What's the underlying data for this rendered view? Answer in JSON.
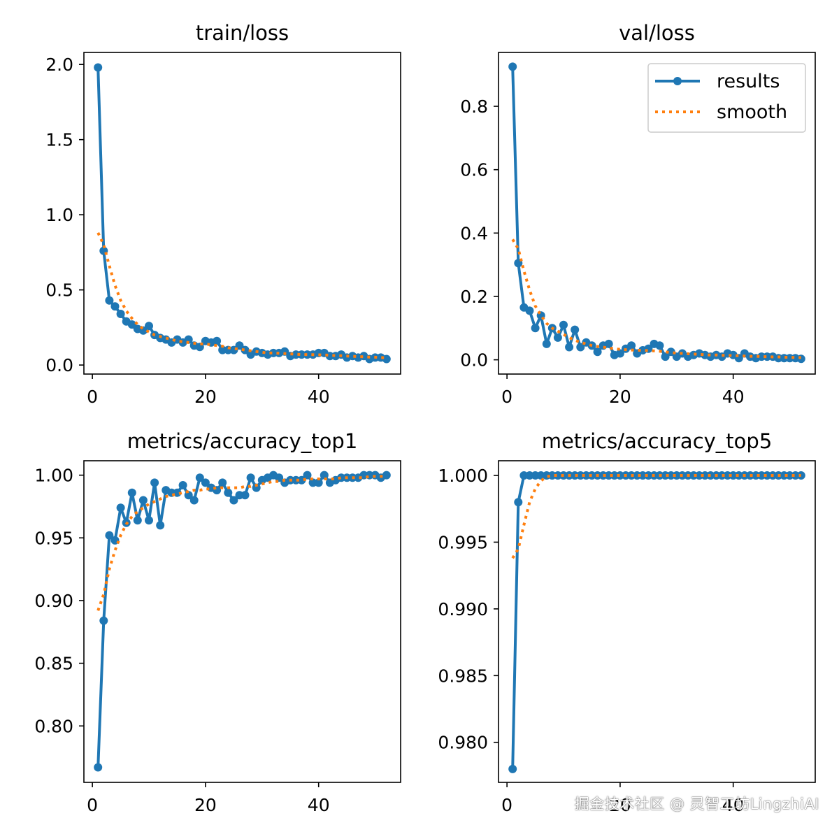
{
  "chart_data": [
    {
      "type": "line",
      "title": "train/loss",
      "xlabel": "",
      "ylabel": "",
      "xlim": [
        -1.5,
        54.5
      ],
      "ylim": [
        -0.06,
        2.08
      ],
      "xticks": [
        0,
        20,
        40
      ],
      "xtick_labels": [
        "0",
        "20",
        "40"
      ],
      "yticks": [
        0.0,
        0.5,
        1.0,
        1.5,
        2.0
      ],
      "ytick_labels": [
        "0.0",
        "0.5",
        "1.0",
        "1.5",
        "2.0"
      ],
      "series": [
        {
          "name": "results",
          "x": [
            1,
            2,
            3,
            4,
            5,
            6,
            7,
            8,
            9,
            10,
            11,
            12,
            13,
            14,
            15,
            16,
            17,
            18,
            19,
            20,
            21,
            22,
            23,
            24,
            25,
            26,
            27,
            28,
            29,
            30,
            31,
            32,
            33,
            34,
            35,
            36,
            37,
            38,
            39,
            40,
            41,
            42,
            43,
            44,
            45,
            46,
            47,
            48,
            49,
            50,
            51,
            52
          ],
          "values": [
            1.98,
            0.76,
            0.43,
            0.39,
            0.34,
            0.29,
            0.27,
            0.24,
            0.23,
            0.26,
            0.2,
            0.18,
            0.17,
            0.15,
            0.17,
            0.15,
            0.17,
            0.13,
            0.12,
            0.16,
            0.15,
            0.16,
            0.1,
            0.1,
            0.1,
            0.13,
            0.1,
            0.07,
            0.09,
            0.08,
            0.07,
            0.08,
            0.08,
            0.09,
            0.06,
            0.07,
            0.07,
            0.07,
            0.07,
            0.08,
            0.08,
            0.06,
            0.06,
            0.07,
            0.05,
            0.06,
            0.05,
            0.06,
            0.04,
            0.05,
            0.05,
            0.04
          ]
        },
        {
          "name": "smooth",
          "x": [
            1,
            2,
            3,
            4,
            5,
            6,
            7,
            8,
            9,
            10,
            11,
            12,
            13,
            14,
            15,
            16,
            17,
            18,
            19,
            20,
            21,
            22,
            23,
            24,
            25,
            26,
            27,
            28,
            29,
            30,
            31,
            32,
            33,
            34,
            35,
            36,
            37,
            38,
            39,
            40,
            41,
            42,
            43,
            44,
            45,
            46,
            47,
            48,
            49,
            50,
            51,
            52
          ],
          "values": [
            0.88,
            0.8,
            0.66,
            0.53,
            0.43,
            0.36,
            0.31,
            0.27,
            0.24,
            0.22,
            0.2,
            0.19,
            0.18,
            0.17,
            0.16,
            0.155,
            0.15,
            0.145,
            0.14,
            0.14,
            0.135,
            0.13,
            0.125,
            0.115,
            0.11,
            0.105,
            0.1,
            0.095,
            0.09,
            0.085,
            0.08,
            0.08,
            0.078,
            0.076,
            0.074,
            0.072,
            0.07,
            0.07,
            0.069,
            0.068,
            0.067,
            0.065,
            0.063,
            0.062,
            0.06,
            0.058,
            0.056,
            0.055,
            0.053,
            0.052,
            0.05,
            0.048
          ]
        }
      ]
    },
    {
      "type": "line",
      "title": "val/loss",
      "xlabel": "",
      "ylabel": "",
      "xlim": [
        -1.5,
        54.5
      ],
      "ylim": [
        -0.045,
        0.97
      ],
      "xticks": [
        0,
        20,
        40
      ],
      "xtick_labels": [
        "0",
        "20",
        "40"
      ],
      "yticks": [
        0.0,
        0.2,
        0.4,
        0.6,
        0.8
      ],
      "ytick_labels": [
        "0.0",
        "0.2",
        "0.4",
        "0.6",
        "0.8"
      ],
      "legend": {
        "position": "top-right",
        "entries": [
          "results",
          "smooth"
        ]
      },
      "series": [
        {
          "name": "results",
          "x": [
            1,
            2,
            3,
            4,
            5,
            6,
            7,
            8,
            9,
            10,
            11,
            12,
            13,
            14,
            15,
            16,
            17,
            18,
            19,
            20,
            21,
            22,
            23,
            24,
            25,
            26,
            27,
            28,
            29,
            30,
            31,
            32,
            33,
            34,
            35,
            36,
            37,
            38,
            39,
            40,
            41,
            42,
            43,
            44,
            45,
            46,
            47,
            48,
            49,
            50,
            51,
            52
          ],
          "values": [
            0.925,
            0.305,
            0.165,
            0.155,
            0.1,
            0.14,
            0.05,
            0.1,
            0.07,
            0.11,
            0.04,
            0.095,
            0.04,
            0.055,
            0.045,
            0.025,
            0.045,
            0.05,
            0.015,
            0.02,
            0.035,
            0.045,
            0.02,
            0.03,
            0.035,
            0.05,
            0.045,
            0.01,
            0.025,
            0.01,
            0.02,
            0.01,
            0.015,
            0.02,
            0.015,
            0.01,
            0.015,
            0.01,
            0.02,
            0.015,
            0.005,
            0.02,
            0.01,
            0.005,
            0.01,
            0.01,
            0.01,
            0.005,
            0.005,
            0.005,
            0.005,
            0.003
          ]
        },
        {
          "name": "smooth",
          "x": [
            1,
            2,
            3,
            4,
            5,
            6,
            7,
            8,
            9,
            10,
            11,
            12,
            13,
            14,
            15,
            16,
            17,
            18,
            19,
            20,
            21,
            22,
            23,
            24,
            25,
            26,
            27,
            28,
            29,
            30,
            31,
            32,
            33,
            34,
            35,
            36,
            37,
            38,
            39,
            40,
            41,
            42,
            43,
            44,
            45,
            46,
            47,
            48,
            49,
            50,
            51,
            52
          ],
          "values": [
            0.38,
            0.35,
            0.28,
            0.22,
            0.17,
            0.14,
            0.115,
            0.1,
            0.09,
            0.08,
            0.07,
            0.062,
            0.055,
            0.05,
            0.045,
            0.042,
            0.04,
            0.037,
            0.035,
            0.033,
            0.032,
            0.031,
            0.03,
            0.03,
            0.029,
            0.028,
            0.027,
            0.025,
            0.023,
            0.021,
            0.02,
            0.019,
            0.018,
            0.017,
            0.016,
            0.015,
            0.015,
            0.014,
            0.014,
            0.013,
            0.013,
            0.012,
            0.011,
            0.011,
            0.01,
            0.01,
            0.009,
            0.009,
            0.008,
            0.008,
            0.007,
            0.007
          ]
        }
      ]
    },
    {
      "type": "line",
      "title": "metrics/accuracy_top1",
      "xlabel": "",
      "ylabel": "",
      "xlim": [
        -1.5,
        54.5
      ],
      "ylim": [
        0.755,
        1.0115
      ],
      "xticks": [
        0,
        20,
        40
      ],
      "xtick_labels": [
        "0",
        "20",
        "40"
      ],
      "yticks": [
        0.8,
        0.85,
        0.9,
        0.95,
        1.0
      ],
      "ytick_labels": [
        "0.80",
        "0.85",
        "0.90",
        "0.95",
        "1.00"
      ],
      "series": [
        {
          "name": "results",
          "x": [
            1,
            2,
            3,
            4,
            5,
            6,
            7,
            8,
            9,
            10,
            11,
            12,
            13,
            14,
            15,
            16,
            17,
            18,
            19,
            20,
            21,
            22,
            23,
            24,
            25,
            26,
            27,
            28,
            29,
            30,
            31,
            32,
            33,
            34,
            35,
            36,
            37,
            38,
            39,
            40,
            41,
            42,
            43,
            44,
            45,
            46,
            47,
            48,
            49,
            50,
            51,
            52
          ],
          "values": [
            0.767,
            0.884,
            0.952,
            0.948,
            0.974,
            0.962,
            0.986,
            0.964,
            0.98,
            0.964,
            0.994,
            0.96,
            0.988,
            0.986,
            0.986,
            0.992,
            0.984,
            0.98,
            0.998,
            0.994,
            0.99,
            0.988,
            0.994,
            0.986,
            0.98,
            0.984,
            0.984,
            0.998,
            0.99,
            0.996,
            0.998,
            1.0,
            0.998,
            0.994,
            0.996,
            0.996,
            0.996,
            1.0,
            0.994,
            0.994,
            1.0,
            0.994,
            0.996,
            0.998,
            0.998,
            0.998,
            0.998,
            1.0,
            1.0,
            1.0,
            0.998,
            1.0
          ]
        },
        {
          "name": "smooth",
          "x": [
            1,
            2,
            3,
            4,
            5,
            6,
            7,
            8,
            9,
            10,
            11,
            12,
            13,
            14,
            15,
            16,
            17,
            18,
            19,
            20,
            21,
            22,
            23,
            24,
            25,
            26,
            27,
            28,
            29,
            30,
            31,
            32,
            33,
            34,
            35,
            36,
            37,
            38,
            39,
            40,
            41,
            42,
            43,
            44,
            45,
            46,
            47,
            48,
            49,
            50,
            51,
            52
          ],
          "values": [
            0.892,
            0.905,
            0.925,
            0.94,
            0.952,
            0.961,
            0.967,
            0.971,
            0.974,
            0.977,
            0.979,
            0.981,
            0.983,
            0.984,
            0.985,
            0.986,
            0.987,
            0.988,
            0.988,
            0.989,
            0.989,
            0.99,
            0.99,
            0.99,
            0.99,
            0.99,
            0.991,
            0.991,
            0.992,
            0.993,
            0.994,
            0.995,
            0.995,
            0.996,
            0.996,
            0.996,
            0.996,
            0.997,
            0.997,
            0.997,
            0.997,
            0.997,
            0.997,
            0.998,
            0.998,
            0.998,
            0.998,
            0.998,
            0.999,
            0.999,
            0.999,
            0.999
          ]
        }
      ]
    },
    {
      "type": "line",
      "title": "metrics/accuracy_top5",
      "xlabel": "",
      "ylabel": "",
      "xlim": [
        -1.5,
        54.5
      ],
      "ylim": [
        0.977,
        1.0011
      ],
      "xticks": [
        0,
        20,
        40
      ],
      "xtick_labels": [
        "0",
        "20",
        "40"
      ],
      "yticks": [
        0.98,
        0.985,
        0.99,
        0.995,
        1.0
      ],
      "ytick_labels": [
        "0.980",
        "0.985",
        "0.990",
        "0.995",
        "1.000"
      ],
      "series": [
        {
          "name": "results",
          "x": [
            1,
            2,
            3,
            4,
            5,
            6,
            7,
            8,
            9,
            10,
            11,
            12,
            13,
            14,
            15,
            16,
            17,
            18,
            19,
            20,
            21,
            22,
            23,
            24,
            25,
            26,
            27,
            28,
            29,
            30,
            31,
            32,
            33,
            34,
            35,
            36,
            37,
            38,
            39,
            40,
            41,
            42,
            43,
            44,
            45,
            46,
            47,
            48,
            49,
            50,
            51,
            52
          ],
          "values": [
            0.978,
            0.998,
            1.0,
            1.0,
            1.0,
            1.0,
            1.0,
            1.0,
            1.0,
            1.0,
            1.0,
            1.0,
            1.0,
            1.0,
            1.0,
            1.0,
            1.0,
            1.0,
            1.0,
            1.0,
            1.0,
            1.0,
            1.0,
            1.0,
            1.0,
            1.0,
            1.0,
            1.0,
            1.0,
            1.0,
            1.0,
            1.0,
            1.0,
            1.0,
            1.0,
            1.0,
            1.0,
            1.0,
            1.0,
            1.0,
            1.0,
            1.0,
            1.0,
            1.0,
            1.0,
            1.0,
            1.0,
            1.0,
            1.0,
            1.0,
            1.0,
            1.0
          ]
        },
        {
          "name": "smooth",
          "x": [
            1,
            2,
            3,
            4,
            5,
            6,
            7,
            8,
            9,
            10,
            11,
            12,
            13,
            14,
            15,
            16,
            17,
            18,
            19,
            20,
            21,
            22,
            23,
            24,
            25,
            26,
            27,
            28,
            29,
            30,
            31,
            32,
            33,
            34,
            35,
            36,
            37,
            38,
            39,
            40,
            41,
            42,
            43,
            44,
            45,
            46,
            47,
            48,
            49,
            50,
            51,
            52
          ],
          "values": [
            0.9938,
            0.9945,
            0.9963,
            0.998,
            0.999,
            0.9996,
            0.9999,
            1.0,
            1.0,
            1.0,
            1.0,
            1.0,
            1.0,
            1.0,
            1.0,
            1.0,
            1.0,
            1.0,
            1.0,
            1.0,
            1.0,
            1.0,
            1.0,
            1.0,
            1.0,
            1.0,
            1.0,
            1.0,
            1.0,
            1.0,
            1.0,
            1.0,
            1.0,
            1.0,
            1.0,
            1.0,
            1.0,
            1.0,
            1.0,
            1.0,
            1.0,
            1.0,
            1.0,
            1.0,
            1.0,
            1.0,
            1.0,
            1.0,
            1.0,
            1.0,
            1.0,
            1.0
          ]
        }
      ]
    }
  ],
  "colors": {
    "results": "#1f77b4",
    "smooth": "#ff7f0e",
    "axis": "#000000",
    "legend_border": "#cccccc"
  },
  "watermark": "掘金技术社区 @ 灵智工坊LingzhiAI"
}
